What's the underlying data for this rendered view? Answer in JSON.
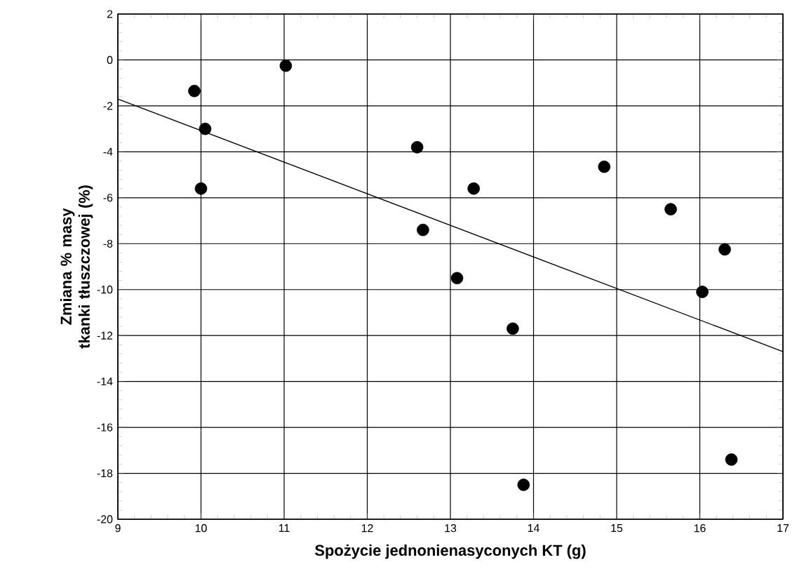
{
  "chart_data": {
    "type": "scatter",
    "xlabel": "Spożycie jednonienasyconych KT (g)",
    "ylabel": "Zmiana % masy tkanki tłuszczowej (%)",
    "xlim": [
      9,
      17
    ],
    "ylim": [
      -20,
      2
    ],
    "xticks": [
      9,
      10,
      11,
      12,
      13,
      14,
      15,
      16,
      17
    ],
    "yticks": [
      -20,
      -18,
      -16,
      -14,
      -12,
      -10,
      -8,
      -6,
      -4,
      -2,
      0,
      2
    ],
    "grid": true,
    "marker": "circle",
    "series": [
      {
        "type": "scatter",
        "color": "#000000",
        "x": [
          9.92,
          10.0,
          10.05,
          11.02,
          12.6,
          12.67,
          13.08,
          13.28,
          13.75,
          13.88,
          14.85,
          15.65,
          16.03,
          16.3,
          16.38
        ],
        "values": [
          -1.35,
          -5.6,
          -3.0,
          -0.25,
          -3.8,
          -7.4,
          -9.5,
          -5.6,
          -11.7,
          -18.5,
          -4.65,
          -6.5,
          -10.1,
          -8.25,
          -17.4
        ]
      },
      {
        "type": "line",
        "marker": "none",
        "color": "#000000",
        "x": [
          9,
          17
        ],
        "values": [
          -1.7,
          -12.7
        ]
      }
    ]
  }
}
